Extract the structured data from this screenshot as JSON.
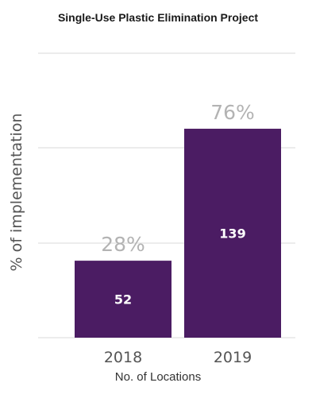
{
  "chart_data": {
    "type": "bar",
    "title": "Single-Use Plastic Elimination Project",
    "xlabel": "No. of Locations",
    "ylabel": "% of implementation",
    "categories": [
      "2018",
      "2019"
    ],
    "values": [
      28,
      76
    ],
    "percent_labels": [
      "28%",
      "76%"
    ],
    "location_counts": [
      "52",
      "139"
    ],
    "ylim": [
      0,
      100
    ],
    "grid": true,
    "bar_color": "#4b1c63",
    "percent_label_color": "#b3b3b3",
    "gridline_color": "#d9d9d9"
  }
}
